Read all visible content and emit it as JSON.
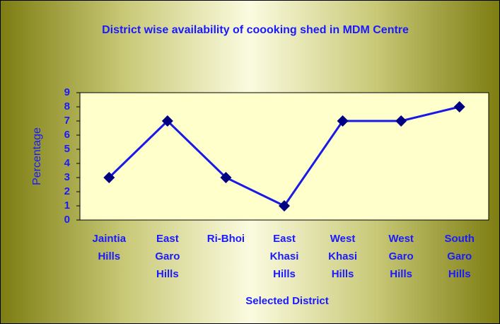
{
  "chart_data": {
    "type": "line",
    "title": "District wise availability of coooking shed in MDM Centre",
    "x_label": "Selected District",
    "y_label": "Percentage",
    "categories": [
      "Jaintia Hills",
      "East Garo Hills",
      "Ri-Bhoi",
      "East Khasi Hills",
      "West Khasi Hills",
      "West Garo Hills",
      "South Garo Hills"
    ],
    "series": [
      {
        "name": "Percentage",
        "color": "#1a1ae6",
        "marker_color": "#000080",
        "values": [
          3,
          7,
          3,
          1,
          7,
          7,
          8
        ]
      }
    ],
    "ylim": [
      0,
      9
    ],
    "yticks": [
      0,
      1,
      2,
      3,
      4,
      5,
      6,
      7,
      8,
      9
    ],
    "grid": false
  }
}
